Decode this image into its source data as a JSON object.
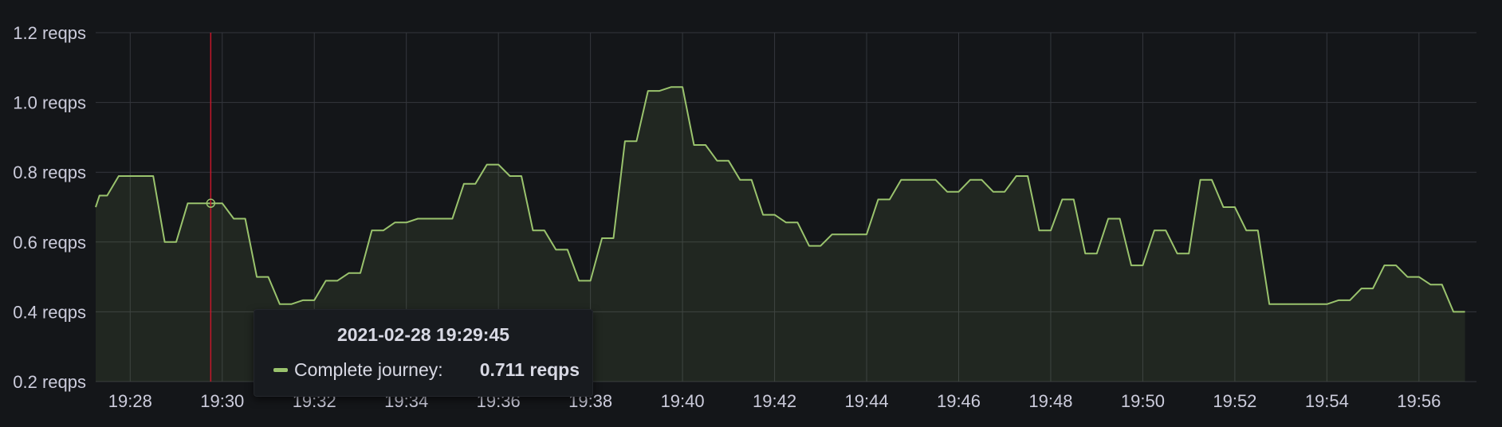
{
  "chart_data": {
    "type": "area",
    "y_unit": "reqps",
    "ylim": [
      0.2,
      1.2
    ],
    "y_ticks": [
      0.2,
      0.4,
      0.6,
      0.8,
      1.0,
      1.2
    ],
    "y_tick_labels": [
      "0.2 reqps",
      "0.4 reqps",
      "0.6 reqps",
      "0.8 reqps",
      "1.0 reqps",
      "1.2 reqps"
    ],
    "x_ticks": [
      "19:28",
      "19:30",
      "19:32",
      "19:34",
      "19:36",
      "19:38",
      "19:40",
      "19:42",
      "19:44",
      "19:46",
      "19:48",
      "19:50",
      "19:52",
      "19:54",
      "19:56"
    ],
    "xlim": [
      "19:27:15",
      "19:57:15"
    ],
    "grid": true,
    "series": [
      {
        "name": "Complete journey",
        "color": "#9ac36d",
        "points": [
          [
            "19:27:15",
            0.7
          ],
          [
            "19:27:20",
            0.733
          ],
          [
            "19:27:30",
            0.733
          ],
          [
            "19:27:45",
            0.789
          ],
          [
            "19:28:30",
            0.789
          ],
          [
            "19:28:45",
            0.6
          ],
          [
            "19:29:00",
            0.6
          ],
          [
            "19:29:15",
            0.711
          ],
          [
            "19:30:00",
            0.711
          ],
          [
            "19:30:15",
            0.667
          ],
          [
            "19:30:30",
            0.667
          ],
          [
            "19:30:45",
            0.5
          ],
          [
            "19:31:00",
            0.5
          ],
          [
            "19:31:15",
            0.422
          ],
          [
            "19:31:30",
            0.422
          ],
          [
            "19:31:45",
            0.433
          ],
          [
            "19:32:00",
            0.433
          ],
          [
            "19:32:15",
            0.489
          ],
          [
            "19:32:30",
            0.489
          ],
          [
            "19:32:45",
            0.511
          ],
          [
            "19:33:00",
            0.511
          ],
          [
            "19:33:15",
            0.633
          ],
          [
            "19:33:30",
            0.633
          ],
          [
            "19:33:45",
            0.656
          ],
          [
            "19:34:00",
            0.656
          ],
          [
            "19:34:15",
            0.667
          ],
          [
            "19:35:00",
            0.667
          ],
          [
            "19:35:15",
            0.767
          ],
          [
            "19:35:30",
            0.767
          ],
          [
            "19:35:45",
            0.822
          ],
          [
            "19:36:00",
            0.822
          ],
          [
            "19:36:15",
            0.789
          ],
          [
            "19:36:30",
            0.789
          ],
          [
            "19:36:45",
            0.633
          ],
          [
            "19:37:00",
            0.633
          ],
          [
            "19:37:15",
            0.578
          ],
          [
            "19:37:30",
            0.578
          ],
          [
            "19:37:45",
            0.489
          ],
          [
            "19:38:00",
            0.489
          ],
          [
            "19:38:15",
            0.611
          ],
          [
            "19:38:30",
            0.611
          ],
          [
            "19:38:45",
            0.889
          ],
          [
            "19:39:00",
            0.889
          ],
          [
            "19:39:15",
            1.033
          ],
          [
            "19:39:30",
            1.033
          ],
          [
            "19:39:45",
            1.044
          ],
          [
            "19:40:00",
            1.044
          ],
          [
            "19:40:15",
            0.878
          ],
          [
            "19:40:30",
            0.878
          ],
          [
            "19:40:45",
            0.833
          ],
          [
            "19:41:00",
            0.833
          ],
          [
            "19:41:15",
            0.778
          ],
          [
            "19:41:30",
            0.778
          ],
          [
            "19:41:45",
            0.678
          ],
          [
            "19:42:00",
            0.678
          ],
          [
            "19:42:15",
            0.656
          ],
          [
            "19:42:30",
            0.656
          ],
          [
            "19:42:45",
            0.589
          ],
          [
            "19:43:00",
            0.589
          ],
          [
            "19:43:15",
            0.622
          ],
          [
            "19:44:00",
            0.622
          ],
          [
            "19:44:15",
            0.722
          ],
          [
            "19:44:30",
            0.722
          ],
          [
            "19:44:45",
            0.778
          ],
          [
            "19:45:30",
            0.778
          ],
          [
            "19:45:45",
            0.744
          ],
          [
            "19:46:00",
            0.744
          ],
          [
            "19:46:15",
            0.778
          ],
          [
            "19:46:30",
            0.778
          ],
          [
            "19:46:45",
            0.744
          ],
          [
            "19:47:00",
            0.744
          ],
          [
            "19:47:15",
            0.789
          ],
          [
            "19:47:30",
            0.789
          ],
          [
            "19:47:45",
            0.633
          ],
          [
            "19:48:00",
            0.633
          ],
          [
            "19:48:15",
            0.722
          ],
          [
            "19:48:30",
            0.722
          ],
          [
            "19:48:45",
            0.567
          ],
          [
            "19:49:00",
            0.567
          ],
          [
            "19:49:15",
            0.667
          ],
          [
            "19:49:30",
            0.667
          ],
          [
            "19:49:45",
            0.533
          ],
          [
            "19:50:00",
            0.533
          ],
          [
            "19:50:15",
            0.633
          ],
          [
            "19:50:30",
            0.633
          ],
          [
            "19:50:45",
            0.567
          ],
          [
            "19:51:00",
            0.567
          ],
          [
            "19:51:15",
            0.778
          ],
          [
            "19:51:30",
            0.778
          ],
          [
            "19:51:45",
            0.7
          ],
          [
            "19:52:00",
            0.7
          ],
          [
            "19:52:15",
            0.633
          ],
          [
            "19:52:30",
            0.633
          ],
          [
            "19:52:45",
            0.422
          ],
          [
            "19:54:00",
            0.422
          ],
          [
            "19:54:15",
            0.433
          ],
          [
            "19:54:30",
            0.433
          ],
          [
            "19:54:45",
            0.467
          ],
          [
            "19:55:00",
            0.467
          ],
          [
            "19:55:15",
            0.533
          ],
          [
            "19:55:30",
            0.533
          ],
          [
            "19:55:45",
            0.5
          ],
          [
            "19:56:00",
            0.5
          ],
          [
            "19:56:15",
            0.478
          ],
          [
            "19:56:30",
            0.478
          ],
          [
            "19:56:45",
            0.4
          ],
          [
            "19:57:00",
            0.4
          ]
        ]
      }
    ],
    "cursor": {
      "time": "19:29:45",
      "color": "#c4162a"
    },
    "tooltip": {
      "title": "2021-02-28 19:29:45",
      "series_name": "Complete journey:",
      "value": "0.711 reqps"
    }
  }
}
